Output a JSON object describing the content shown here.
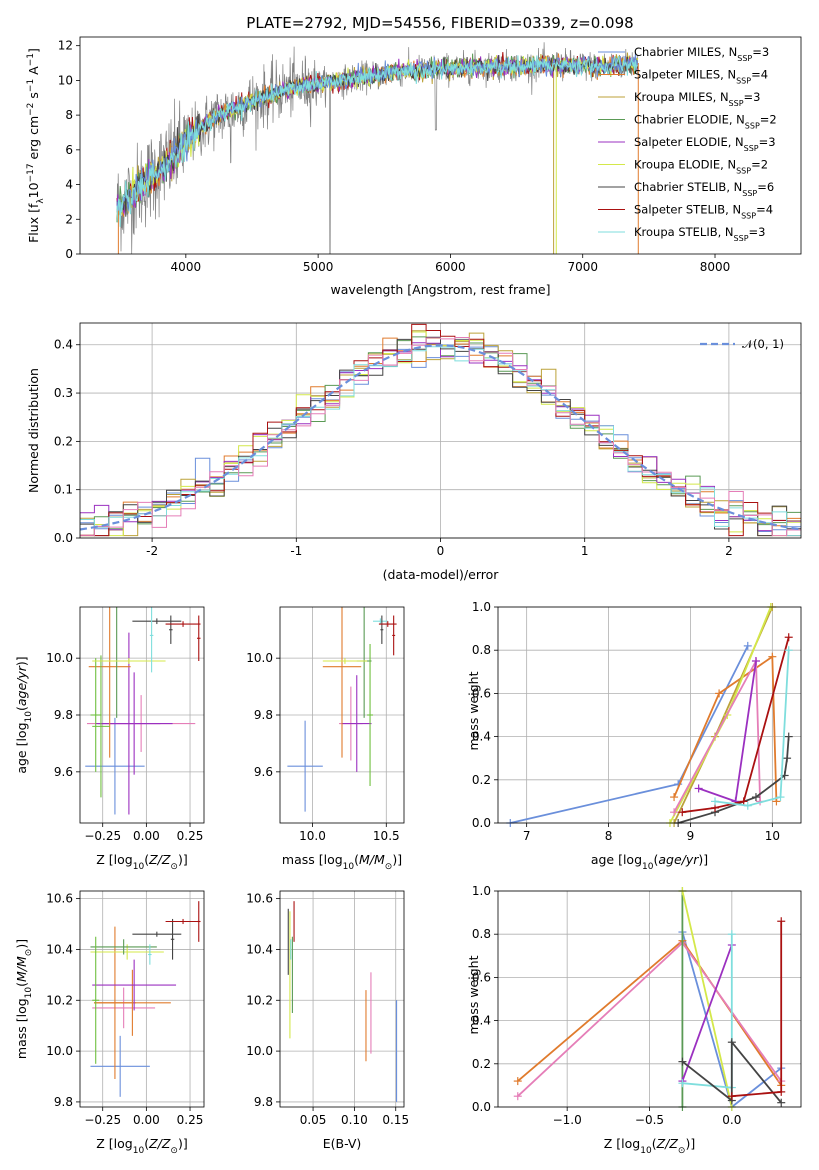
{
  "figure_title": "PLATE=2792, MJD=54556, FIBERID=0339, z=0.098",
  "colors": {
    "data_spectrum": "#808080",
    "chabrier_miles": "#6a8fdb",
    "salpeter_miles": "#e07b2d",
    "kroupa_miles": "#bca23a",
    "chabrier_elodie": "#5a9a55",
    "salpeter_elodie": "#9b30c0",
    "kroupa_elodie": "#d4e84a",
    "chabrier_stelib": "#444444",
    "salpeter_stelib": "#aa1111",
    "kroupa_stelib": "#7fdedd",
    "pink": "#e57eb8",
    "green2": "#6fbf3f"
  },
  "chart_data": [
    {
      "id": "spectrum",
      "type": "line",
      "title": "",
      "xlabel": "wavelength [Angstrom, rest frame]",
      "ylabel": "Flux [f",
      "ylabel_parts": [
        "Flux [f",
        "λ",
        "10",
        "−17",
        " erg cm",
        "−2",
        " s",
        "−1",
        " A",
        "−1",
        "]"
      ],
      "xlim": [
        3200,
        8650
      ],
      "ylim": [
        0,
        12.5
      ],
      "xticks": [
        4000,
        5000,
        6000,
        7000,
        8000
      ],
      "yticks": [
        0,
        2,
        4,
        6,
        8,
        10,
        12
      ],
      "legend_position": "top-right",
      "legend": [
        {
          "label": "Chabrier MILES, N",
          "sub": "SSP",
          "eq": "=3",
          "color": "#6a8fdb"
        },
        {
          "label": "Salpeter MILES, N",
          "sub": "SSP",
          "eq": "=4",
          "color": "#e07b2d"
        },
        {
          "label": "Kroupa MILES, N",
          "sub": "SSP",
          "eq": "=3",
          "color": "#bca23a"
        },
        {
          "label": "Chabrier ELODIE, N",
          "sub": "SSP",
          "eq": "=2",
          "color": "#5a9a55"
        },
        {
          "label": "Salpeter ELODIE, N",
          "sub": "SSP",
          "eq": "=3",
          "color": "#9b30c0"
        },
        {
          "label": "Kroupa ELODIE, N",
          "sub": "SSP",
          "eq": "=2",
          "color": "#d4e84a"
        },
        {
          "label": "Chabrier STELIB, N",
          "sub": "SSP",
          "eq": "=6",
          "color": "#444444"
        },
        {
          "label": "Salpeter STELIB, N",
          "sub": "SSP",
          "eq": "=4",
          "color": "#aa1111"
        },
        {
          "label": "Kroupa STELIB, N",
          "sub": "SSP",
          "eq": "=3",
          "color": "#7fdedd"
        }
      ],
      "continuum_anchors_x": [
        3500,
        3700,
        3900,
        4000,
        4200,
        4500,
        4800,
        5200,
        5600,
        6000,
        6400,
        6800,
        7200,
        7420
      ],
      "continuum_anchors_y": [
        2.8,
        4.2,
        5.5,
        6.5,
        7.8,
        8.8,
        9.6,
        10.0,
        10.5,
        10.7,
        10.8,
        10.9,
        10.8,
        11.0
      ],
      "model_range": [
        3480,
        7420
      ],
      "data_range": [
        3480,
        7420
      ]
    },
    {
      "id": "residuals",
      "type": "histogram",
      "xlabel": "(data-model)/error",
      "ylabel": "Normed distribution",
      "xlim": [
        -2.5,
        2.5
      ],
      "ylim": [
        0,
        0.445
      ],
      "xticks": [
        -2,
        -1,
        0,
        1,
        2
      ],
      "ytick_values": [
        0.0,
        0.1,
        0.2,
        0.3,
        0.4
      ],
      "ytick_labels": [
        "0.0",
        "0.1",
        "0.2",
        "0.3",
        "0.4"
      ],
      "legend_position": "top-right",
      "legend": [
        {
          "label": "𝒩(0, 1)",
          "color": "#6a8fdb",
          "style": "dashed"
        }
      ],
      "bins": 50,
      "series_colors": [
        "#6a8fdb",
        "#e07b2d",
        "#bca23a",
        "#5a9a55",
        "#9b30c0",
        "#d4e84a",
        "#444444",
        "#aa1111",
        "#7fdedd",
        "#e57eb8"
      ]
    },
    {
      "id": "age_vs_Z",
      "type": "errorbar",
      "xlabel": "Z [log10(Z/Z⊙)]",
      "ylabel": "age  [log10(age/yr)]",
      "xlim": [
        -0.38,
        0.33
      ],
      "ylim": [
        9.42,
        10.18
      ],
      "xticks": [
        -0.25,
        0.0,
        0.25
      ],
      "xtick_labels": [
        "−0.25",
        "0.00",
        "0.25"
      ],
      "yticks": [
        9.6,
        9.8,
        10.0
      ],
      "ytick_labels": [
        "9.6",
        "9.8",
        "10.0"
      ],
      "points": [
        {
          "x": -0.18,
          "xerr": 0.17,
          "y": 9.62,
          "yerr": 0.17,
          "color": "#6a8fdb"
        },
        {
          "x": -0.03,
          "xerr": 0.31,
          "y": 9.77,
          "yerr": 0.1,
          "color": "#e57eb8"
        },
        {
          "x": -0.07,
          "xerr": 0.22,
          "y": 9.77,
          "yerr": 0.18,
          "color": "#9b30c0"
        },
        {
          "x": -0.1,
          "xerr": 0.18,
          "y": 9.77,
          "yerr": 0.32,
          "color": "#9b30c0"
        },
        {
          "x": -0.21,
          "xerr": 0.12,
          "y": 9.97,
          "yerr": 0.32,
          "color": "#e07b2d"
        },
        {
          "x": -0.17,
          "xerr": 0.13,
          "y": 9.99,
          "yerr": 0.2,
          "color": "#5a9a55"
        },
        {
          "x": -0.26,
          "xerr": 0.05,
          "y": 9.76,
          "yerr": 0.25,
          "color": "#6fbf3f"
        },
        {
          "x": -0.29,
          "xerr": 0.03,
          "y": 9.8,
          "yerr": 0.2,
          "color": "#6fbf3f"
        },
        {
          "x": -0.1,
          "xerr": 0.21,
          "y": 9.99,
          "yerr": 0.01,
          "color": "#d4e84a"
        },
        {
          "x": 0.06,
          "xerr": 0.14,
          "y": 10.13,
          "yerr": 0.01,
          "color": "#444444"
        },
        {
          "x": 0.14,
          "xerr": 0.01,
          "y": 10.1,
          "yerr": 0.05,
          "color": "#444444"
        },
        {
          "x": 0.03,
          "xerr": 0.01,
          "y": 10.08,
          "yerr": 0.13,
          "color": "#7fdedd"
        },
        {
          "x": 0.21,
          "xerr": 0.1,
          "y": 10.12,
          "yerr": 0.01,
          "color": "#aa1111"
        },
        {
          "x": 0.3,
          "xerr": 0.01,
          "y": 10.07,
          "yerr": 0.08,
          "color": "#aa1111"
        }
      ]
    },
    {
      "id": "age_vs_mass",
      "type": "errorbar",
      "xlabel": "mass [log10(M/M⊙)]",
      "ylabel": "",
      "xlim": [
        9.78,
        10.62
      ],
      "ylim": [
        9.42,
        10.18
      ],
      "xticks": [
        10.0,
        10.5
      ],
      "xtick_labels": [
        "10.0",
        "10.5"
      ],
      "yticks": [
        9.6,
        9.8,
        10.0
      ],
      "ytick_labels": [
        "9.6",
        "9.8",
        "10.0"
      ],
      "points": [
        {
          "x": 9.95,
          "xerr": 0.12,
          "y": 9.62,
          "yerr": 0.16,
          "color": "#6a8fdb"
        },
        {
          "x": 10.26,
          "xerr": 0.08,
          "y": 9.77,
          "yerr": 0.13,
          "color": "#e57eb8"
        },
        {
          "x": 10.3,
          "xerr": 0.1,
          "y": 9.77,
          "yerr": 0.17,
          "color": "#9b30c0"
        },
        {
          "x": 10.2,
          "xerr": 0.13,
          "y": 9.97,
          "yerr": 0.32,
          "color": "#e07b2d"
        },
        {
          "x": 10.35,
          "xerr": 0.05,
          "y": 9.99,
          "yerr": 0.2,
          "color": "#5a9a55"
        },
        {
          "x": 10.39,
          "xerr": 0.02,
          "y": 9.8,
          "yerr": 0.25,
          "color": "#6fbf3f"
        },
        {
          "x": 10.22,
          "xerr": 0.15,
          "y": 9.99,
          "yerr": 0.01,
          "color": "#d4e84a"
        },
        {
          "x": 10.46,
          "xerr": 0.05,
          "y": 10.13,
          "yerr": 0.01,
          "color": "#7fdedd"
        },
        {
          "x": 10.47,
          "xerr": 0.01,
          "y": 10.1,
          "yerr": 0.05,
          "color": "#444444"
        },
        {
          "x": 10.51,
          "xerr": 0.06,
          "y": 10.12,
          "yerr": 0.01,
          "color": "#aa1111"
        },
        {
          "x": 10.55,
          "xerr": 0.01,
          "y": 10.08,
          "yerr": 0.07,
          "color": "#aa1111"
        }
      ]
    },
    {
      "id": "weight_vs_age",
      "type": "line",
      "xlabel": "age  [log10(age/yr)]",
      "ylabel": "mass weight",
      "xlim": [
        6.65,
        10.35
      ],
      "ylim": [
        0,
        1.0
      ],
      "xticks": [
        7,
        8,
        9,
        10
      ],
      "yticks": [
        0.0,
        0.2,
        0.4,
        0.6,
        0.8,
        1.0
      ],
      "ytick_labels": [
        "0.0",
        "0.2",
        "0.4",
        "0.6",
        "0.8",
        "1.0"
      ],
      "series": [
        {
          "color": "#6a8fdb",
          "x": [
            6.8,
            8.85,
            9.7
          ],
          "y": [
            0.0,
            0.18,
            0.82
          ]
        },
        {
          "color": "#e07b2d",
          "x": [
            8.8,
            9.35,
            10.0,
            10.05
          ],
          "y": [
            0.12,
            0.6,
            0.77,
            0.1
          ]
        },
        {
          "color": "#bca23a",
          "x": [
            8.8,
            9.3,
            10.0
          ],
          "y": [
            0.0,
            0.4,
            1.0
          ]
        },
        {
          "color": "#d4e84a",
          "x": [
            8.75,
            9.45,
            9.98
          ],
          "y": [
            0.0,
            0.5,
            1.0
          ]
        },
        {
          "color": "#e57eb8",
          "x": [
            8.8,
            9.8,
            9.85
          ],
          "y": [
            0.05,
            0.75,
            0.1
          ]
        },
        {
          "color": "#9b30c0",
          "x": [
            9.1,
            9.55,
            9.8
          ],
          "y": [
            0.16,
            0.1,
            0.75
          ]
        },
        {
          "color": "#444444",
          "x": [
            8.85,
            9.3,
            9.8,
            10.15,
            10.18,
            10.2
          ],
          "y": [
            0.0,
            0.05,
            0.12,
            0.22,
            0.3,
            0.4
          ]
        },
        {
          "color": "#aa1111",
          "x": [
            8.9,
            9.3,
            9.65,
            10.2
          ],
          "y": [
            0.05,
            0.07,
            0.1,
            0.86
          ]
        },
        {
          "color": "#7fdedd",
          "x": [
            9.3,
            9.7,
            10.1,
            10.2
          ],
          "y": [
            0.1,
            0.08,
            0.12,
            0.8
          ]
        }
      ]
    },
    {
      "id": "mass_vs_Z",
      "type": "errorbar",
      "xlabel": "Z [log10(Z/Z⊙)]",
      "ylabel": "mass [log10(M/M⊙)]",
      "xlim": [
        -0.38,
        0.33
      ],
      "ylim": [
        9.78,
        10.63
      ],
      "xticks": [
        -0.25,
        0.0,
        0.25
      ],
      "xtick_labels": [
        "−0.25",
        "0.00",
        "0.25"
      ],
      "yticks": [
        9.8,
        10.0,
        10.2,
        10.4,
        10.6
      ],
      "ytick_labels": [
        "9.8",
        "10.0",
        "10.2",
        "10.4",
        "10.6"
      ],
      "points": [
        {
          "x": -0.15,
          "xerr": 0.17,
          "y": 9.94,
          "yerr": 0.12,
          "color": "#6a8fdb"
        },
        {
          "x": -0.13,
          "xerr": 0.18,
          "y": 10.17,
          "yerr": 0.08,
          "color": "#e57eb8"
        },
        {
          "x": -0.08,
          "xerr": 0.22,
          "y": 10.19,
          "yerr": 0.13,
          "color": "#e07b2d"
        },
        {
          "x": -0.18,
          "xerr": 0.12,
          "y": 10.19,
          "yerr": 0.3,
          "color": "#e07b2d"
        },
        {
          "x": -0.07,
          "xerr": 0.24,
          "y": 10.26,
          "yerr": 0.1,
          "color": "#9b30c0"
        },
        {
          "x": -0.11,
          "xerr": 0.21,
          "y": 10.39,
          "yerr": 0.03,
          "color": "#d4e84a"
        },
        {
          "x": -0.13,
          "xerr": 0.19,
          "y": 10.41,
          "yerr": 0.03,
          "color": "#5a9a55"
        },
        {
          "x": -0.29,
          "xerr": 0.02,
          "y": 10.2,
          "yerr": 0.25,
          "color": "#6fbf3f"
        },
        {
          "x": 0.02,
          "xerr": 0.01,
          "y": 10.38,
          "yerr": 0.04,
          "color": "#7fdedd"
        },
        {
          "x": 0.06,
          "xerr": 0.14,
          "y": 10.46,
          "yerr": 0.01,
          "color": "#444444"
        },
        {
          "x": 0.15,
          "xerr": 0.01,
          "y": 10.44,
          "yerr": 0.08,
          "color": "#444444"
        },
        {
          "x": 0.21,
          "xerr": 0.1,
          "y": 10.51,
          "yerr": 0.01,
          "color": "#aa1111"
        },
        {
          "x": 0.3,
          "xerr": 0.01,
          "y": 10.51,
          "yerr": 0.08,
          "color": "#aa1111"
        }
      ]
    },
    {
      "id": "mass_vs_ebv",
      "type": "errorbar",
      "xlabel": "E(B-V)",
      "ylabel": "",
      "xlim": [
        0.01,
        0.16
      ],
      "ylim": [
        9.78,
        10.63
      ],
      "xticks": [
        0.05,
        0.1,
        0.15
      ],
      "xtick_labels": [
        "0.05",
        "0.10",
        "0.15"
      ],
      "yticks": [
        9.8,
        10.0,
        10.2,
        10.4,
        10.6
      ],
      "ytick_labels": [
        "9.8",
        "10.0",
        "10.2",
        "10.4",
        "10.6"
      ],
      "points": [
        {
          "x": 0.02,
          "xerr": 0,
          "y": 10.43,
          "yerr": 0.13,
          "color": "#444444"
        },
        {
          "x": 0.022,
          "xerr": 0,
          "y": 10.3,
          "yerr": 0.25,
          "color": "#d4e84a"
        },
        {
          "x": 0.023,
          "xerr": 0,
          "y": 10.4,
          "yerr": 0.04,
          "color": "#7fdedd"
        },
        {
          "x": 0.025,
          "xerr": 0,
          "y": 10.3,
          "yerr": 0.15,
          "color": "#5a9a55"
        },
        {
          "x": 0.027,
          "xerr": 0,
          "y": 10.51,
          "yerr": 0.08,
          "color": "#aa1111"
        },
        {
          "x": 0.114,
          "xerr": 0,
          "y": 10.1,
          "yerr": 0.14,
          "color": "#e07b2d"
        },
        {
          "x": 0.12,
          "xerr": 0,
          "y": 10.15,
          "yerr": 0.16,
          "color": "#e57eb8"
        },
        {
          "x": 0.151,
          "xerr": 0,
          "y": 10.0,
          "yerr": 0.2,
          "color": "#6a8fdb"
        }
      ]
    },
    {
      "id": "weight_vs_Z",
      "type": "line",
      "xlabel": "Z [log10(Z/Z⊙)]",
      "ylabel": "mass weight",
      "xlim": [
        -1.42,
        0.42
      ],
      "ylim": [
        0,
        1.0
      ],
      "xticks": [
        -1.0,
        -0.5,
        0.0
      ],
      "xtick_labels": [
        "−1.0",
        "−0.5",
        "0.0"
      ],
      "yticks": [
        0.0,
        0.2,
        0.4,
        0.6,
        0.8,
        1.0
      ],
      "ytick_labels": [
        "0.0",
        "0.2",
        "0.4",
        "0.6",
        "0.8",
        "1.0"
      ],
      "series": [
        {
          "color": "#6a8fdb",
          "x": [
            -0.3,
            0.0,
            0.3
          ],
          "y": [
            0.81,
            0.0,
            0.18
          ]
        },
        {
          "color": "#e07b2d",
          "x": [
            -1.3,
            -0.3,
            0.3
          ],
          "y": [
            0.12,
            0.77,
            0.1
          ]
        },
        {
          "color": "#e57eb8",
          "x": [
            -1.3,
            -0.3,
            0.3
          ],
          "y": [
            0.05,
            0.76,
            0.12
          ]
        },
        {
          "color": "#5a9a55",
          "x": [
            -0.3,
            -0.3
          ],
          "y": [
            0.0,
            1.0
          ]
        },
        {
          "color": "#d4e84a",
          "x": [
            -0.3,
            0.0
          ],
          "y": [
            1.0,
            0.0
          ]
        },
        {
          "color": "#9b30c0",
          "x": [
            -0.3,
            0.0
          ],
          "y": [
            0.12,
            0.75
          ]
        },
        {
          "color": "#7fdedd",
          "x": [
            -0.3,
            0.0,
            0.0
          ],
          "y": [
            0.11,
            0.09,
            0.8
          ]
        },
        {
          "color": "#444444",
          "x": [
            -0.3,
            0.0,
            0.0,
            0.3
          ],
          "y": [
            0.21,
            0.03,
            0.3,
            0.02
          ]
        },
        {
          "color": "#aa1111",
          "x": [
            0.0,
            0.3,
            0.3
          ],
          "y": [
            0.05,
            0.07,
            0.86
          ]
        }
      ]
    }
  ]
}
